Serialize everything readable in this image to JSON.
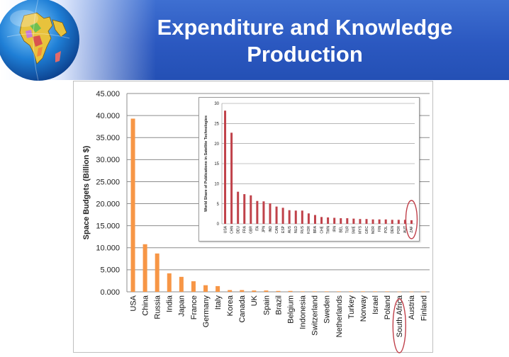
{
  "slide": {
    "title_line1": "Expenditure and Knowledge",
    "title_line2": "Production"
  },
  "colors": {
    "main_bar": "#f79646",
    "inset_bar": "#c0424a",
    "highlight_ellipse": "#c0404a"
  },
  "chart_data": [
    {
      "type": "bar",
      "ylabel": "Space Budgets (Billion $)",
      "xlabel": "",
      "ylim": [
        0,
        45
      ],
      "yticks": [
        0,
        5,
        10,
        15,
        20,
        25,
        30,
        35,
        40,
        45
      ],
      "ytick_labels": [
        "0.000",
        "5.000",
        "10.000",
        "15.000",
        "20.000",
        "25.000",
        "30.000",
        "35.000",
        "40.000",
        "45.000"
      ],
      "grid": true,
      "categories": [
        "USA",
        "China",
        "Russia",
        "India",
        "Japan",
        "France",
        "Germany",
        "Italy",
        "Korea",
        "Canada",
        "UK",
        "Spain",
        "Brazil",
        "Belgium",
        "Indonesia",
        "Switzerland",
        "Sweden",
        "Netherlands",
        "Turkey",
        "Norway",
        "Israel",
        "Poland",
        "South Africa",
        "Austria",
        "Finland"
      ],
      "values": [
        39.3,
        10.8,
        8.7,
        4.2,
        3.4,
        2.4,
        1.5,
        1.3,
        0.4,
        0.4,
        0.3,
        0.3,
        0.2,
        0.2,
        0.1,
        0.1,
        0.1,
        0.1,
        0.1,
        0.1,
        0.1,
        0.1,
        0.05,
        0.05,
        0.05
      ],
      "highlighted": "South Africa"
    },
    {
      "type": "bar",
      "ylabel": "World Share of Publications in Satellite Technologies",
      "xlabel": "",
      "ylim": [
        0,
        30
      ],
      "yticks": [
        0,
        5,
        10,
        15,
        20,
        25,
        30
      ],
      "ytick_labels": [
        "0",
        "5",
        "10",
        "15",
        "20",
        "25",
        "30"
      ],
      "grid": true,
      "categories": [
        "USA",
        "CHN",
        "DEU",
        "FRA",
        "GBR",
        "ITA",
        "JPN",
        "IND",
        "CAN",
        "ESP",
        "AUS",
        "NLD",
        "RUS",
        "KOR",
        "BRA",
        "CHE",
        "TWN",
        "IRN",
        "BEL",
        "TUR",
        "SWE",
        "MYS",
        "GRC",
        "NOR",
        "FIN",
        "POL",
        "DEN",
        "POR",
        "AUT",
        "ZAF"
      ],
      "values": [
        28.2,
        22.7,
        8.0,
        7.4,
        7.1,
        5.7,
        5.6,
        5.1,
        4.3,
        4.0,
        3.4,
        3.3,
        3.3,
        2.6,
        2.2,
        1.7,
        1.6,
        1.5,
        1.4,
        1.4,
        1.3,
        1.2,
        1.2,
        1.1,
        1.1,
        1.1,
        1.0,
        1.0,
        1.0,
        0.9
      ],
      "highlighted": "ZAF"
    }
  ]
}
